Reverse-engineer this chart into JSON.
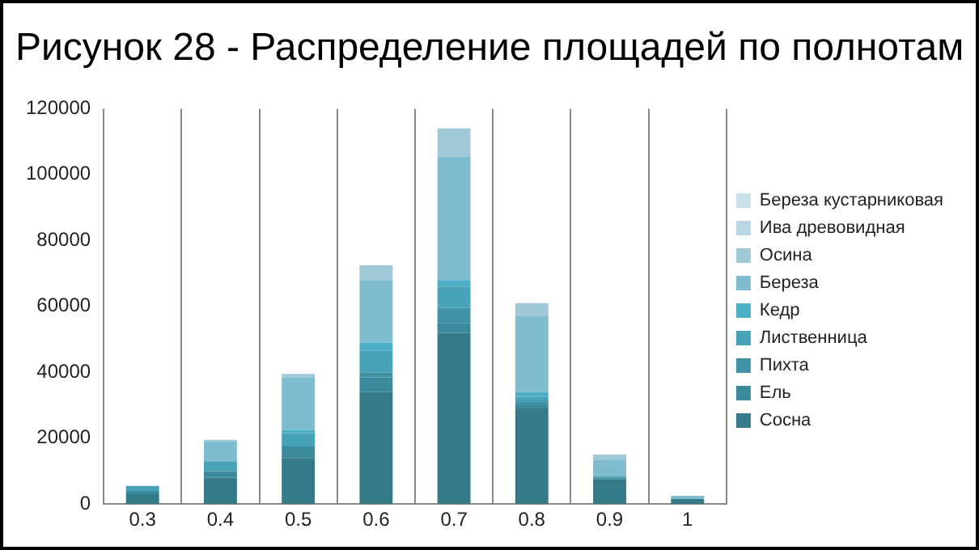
{
  "chart_data": {
    "type": "bar",
    "title": "Рисунок 28 - Распределение площадей по полнотам",
    "categories": [
      "0.3",
      "0.4",
      "0.5",
      "0.6",
      "0.7",
      "0.8",
      "0.9",
      "1"
    ],
    "stacked": true,
    "grid": "x",
    "legend": "right",
    "ylim": [
      0,
      120000
    ],
    "yticks": [
      0,
      20000,
      40000,
      60000,
      80000,
      100000,
      120000
    ],
    "series": [
      {
        "name": "Сосна",
        "color": "#367a8a",
        "values": [
          3000,
          8000,
          14000,
          34000,
          52000,
          29000,
          7500,
          1500
        ]
      },
      {
        "name": "Ель",
        "color": "#3b8a9c",
        "values": [
          1000,
          2000,
          3500,
          4500,
          3000,
          1000,
          500,
          0
        ]
      },
      {
        "name": "Пихта",
        "color": "#4093a6",
        "values": [
          0,
          0,
          0,
          1500,
          4500,
          1000,
          0,
          0
        ]
      },
      {
        "name": "Лиственница",
        "color": "#48a2b8",
        "values": [
          1500,
          3000,
          4000,
          6500,
          6500,
          1500,
          500,
          0
        ]
      },
      {
        "name": "Кедр",
        "color": "#4eb0c6",
        "values": [
          0,
          0,
          1000,
          2500,
          2000,
          1500,
          0,
          0
        ]
      },
      {
        "name": "Береза",
        "color": "#80bcd0",
        "values": [
          0,
          6000,
          16000,
          19000,
          37500,
          23000,
          5000,
          1000
        ]
      },
      {
        "name": "Осина",
        "color": "#a0c9d8",
        "values": [
          0,
          500,
          1000,
          4500,
          8500,
          4000,
          1500,
          0
        ]
      },
      {
        "name": "Ива древовидная",
        "color": "#b8d8e4",
        "values": [
          0,
          0,
          0,
          0,
          0,
          0,
          0,
          0
        ]
      },
      {
        "name": "Береза кустарниковая",
        "color": "#cce0ea",
        "values": [
          0,
          0,
          0,
          0,
          0,
          0,
          0,
          0
        ]
      }
    ]
  }
}
